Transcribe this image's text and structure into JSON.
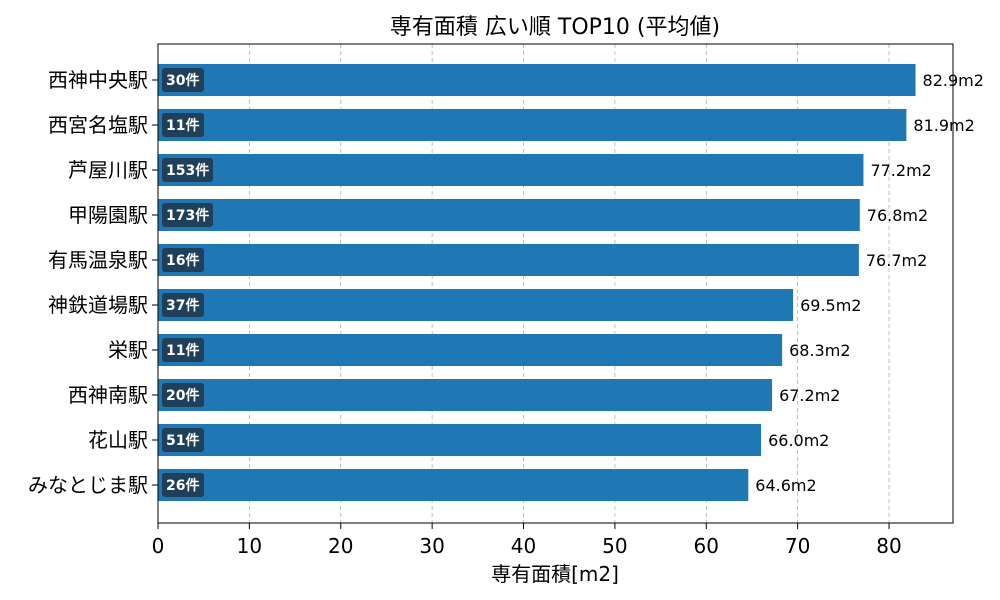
{
  "chart_data": {
    "type": "bar",
    "orientation": "horizontal",
    "title": "専有面積 広い順 TOP10 (平均値)",
    "xlabel": "専有面積[m2]",
    "ylabel": "",
    "xlim": [
      0,
      87
    ],
    "xticks": [
      "0",
      "10",
      "20",
      "30",
      "40",
      "50",
      "60",
      "70",
      "80"
    ],
    "grid": "x-dashed",
    "bar_color": "#1f77b4",
    "count_badge_color": "#1f3f5a",
    "categories": [
      "西神中央駅",
      "西宮名塩駅",
      "芦屋川駅",
      "甲陽園駅",
      "有馬温泉駅",
      "神鉄道場駅",
      "栄駅",
      "西神南駅",
      "花山駅",
      "みなとじま駅"
    ],
    "values": [
      82.9,
      81.9,
      77.2,
      76.8,
      76.7,
      69.5,
      68.3,
      67.2,
      66.0,
      64.6
    ],
    "value_labels": [
      "82.9m2",
      "81.9m2",
      "77.2m2",
      "76.8m2",
      "76.7m2",
      "69.5m2",
      "68.3m2",
      "67.2m2",
      "66.0m2",
      "64.6m2"
    ],
    "count_labels": [
      "30件",
      "11件",
      "153件",
      "173件",
      "16件",
      "37件",
      "11件",
      "20件",
      "51件",
      "26件"
    ]
  }
}
